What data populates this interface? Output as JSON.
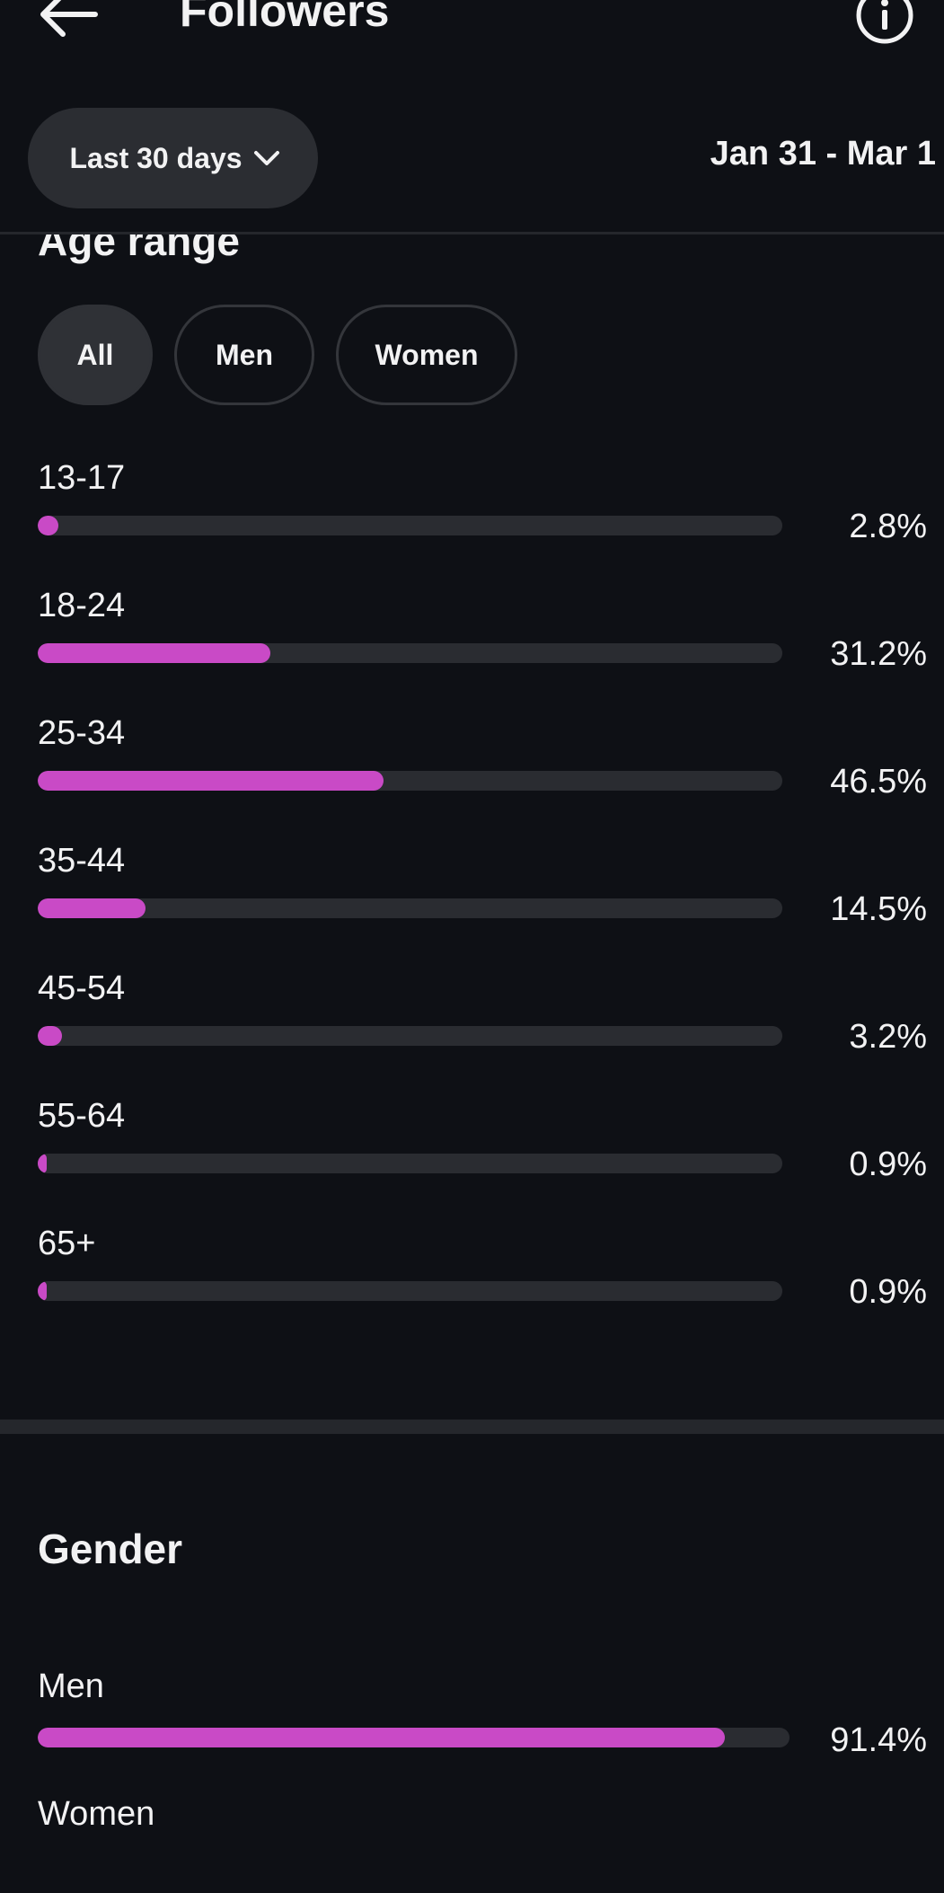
{
  "header": {
    "title": "Followers",
    "back_icon": "arrow-left-icon",
    "info_icon": "info-icon"
  },
  "filters": {
    "period_label": "Last 30 days",
    "date_range": "Jan 31 - Mar 1"
  },
  "age_range": {
    "title": "Age range",
    "chips": [
      "All",
      "Men",
      "Women"
    ],
    "selected_chip": "All",
    "rows": [
      {
        "label": "13-17",
        "value": "2.8%",
        "percent": 2.8
      },
      {
        "label": "18-24",
        "value": "31.2%",
        "percent": 31.2
      },
      {
        "label": "25-34",
        "value": "46.5%",
        "percent": 46.5
      },
      {
        "label": "35-44",
        "value": "14.5%",
        "percent": 14.5
      },
      {
        "label": "45-54",
        "value": "3.2%",
        "percent": 3.2
      },
      {
        "label": "55-64",
        "value": "0.9%",
        "percent": 0.9
      },
      {
        "label": "65+",
        "value": "0.9%",
        "percent": 0.9
      }
    ]
  },
  "gender": {
    "title": "Gender",
    "rows": [
      {
        "label": "Men",
        "value": "91.4%",
        "percent": 91.4
      },
      {
        "label": "Women"
      }
    ]
  },
  "colors": {
    "background": "#0e1015",
    "accent": "#c94ac6",
    "track": "#2a2c31",
    "chip": "#2f3136"
  }
}
